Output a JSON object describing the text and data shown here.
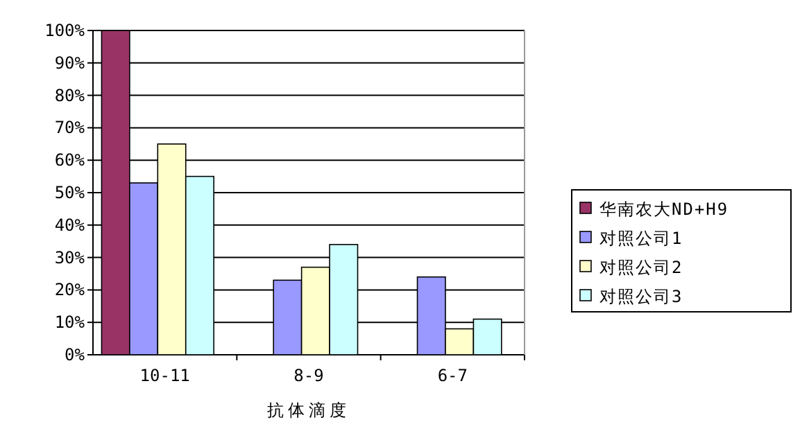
{
  "chart_data": {
    "type": "bar",
    "xlabel": "抗体滴度",
    "categories": [
      "10-11",
      "8-9",
      "6-7"
    ],
    "series": [
      {
        "name": "华南农大ND+H9",
        "color": "#993366",
        "values": [
          100,
          0,
          0
        ]
      },
      {
        "name": "对照公司1",
        "color": "#9999ff",
        "values": [
          53,
          23,
          24
        ]
      },
      {
        "name": "对照公司2",
        "color": "#ffffcc",
        "values": [
          65,
          27,
          8
        ]
      },
      {
        "name": "对照公司3",
        "color": "#ccffff",
        "values": [
          55,
          34,
          11
        ]
      }
    ],
    "ylim": [
      0,
      100
    ],
    "yticks": [
      {
        "value": 0,
        "label": "0%"
      },
      {
        "value": 10,
        "label": "10%"
      },
      {
        "value": 20,
        "label": "20%"
      },
      {
        "value": 30,
        "label": "30%"
      },
      {
        "value": 40,
        "label": "40%"
      },
      {
        "value": 50,
        "label": "50%"
      },
      {
        "value": 60,
        "label": "60%"
      },
      {
        "value": 70,
        "label": "70%"
      },
      {
        "value": 80,
        "label": "80%"
      },
      {
        "value": 90,
        "label": "90%"
      },
      {
        "value": 100,
        "label": "100%"
      }
    ],
    "grid": "y",
    "legend": "right"
  }
}
